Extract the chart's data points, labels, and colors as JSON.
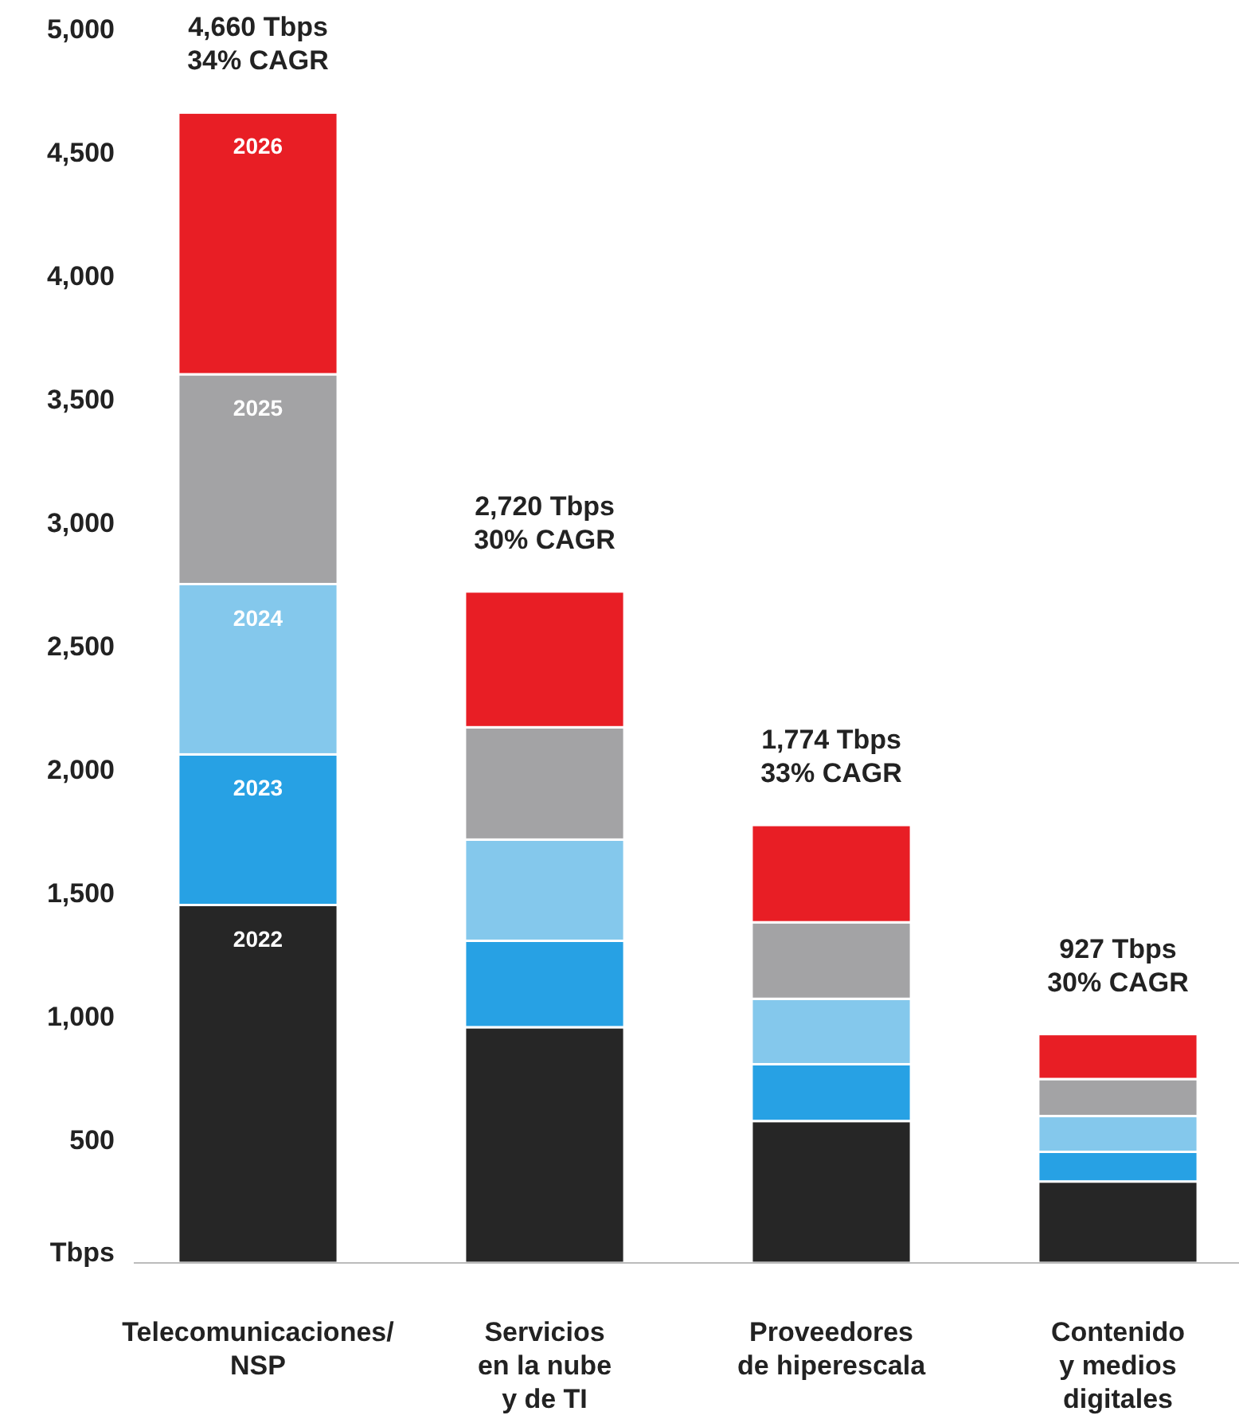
{
  "chart_data": {
    "type": "bar",
    "stacked": true,
    "categories": [
      "Telecomunicaciones/\nNSP",
      "Servicios\nen la nube\ny de TI",
      "Proveedores\nde hiperescala",
      "Contenido\ny medios\ndigitales"
    ],
    "series": [
      {
        "name": "2022",
        "color": "#262626",
        "values": [
          1450,
          955,
          575,
          330
        ]
      },
      {
        "name": "2023",
        "color": "#27a1e4",
        "values": [
          610,
          350,
          230,
          120
        ]
      },
      {
        "name": "2024",
        "color": "#84c8ec",
        "values": [
          690,
          410,
          265,
          145
        ]
      },
      {
        "name": "2025",
        "color": "#a3a3a5",
        "values": [
          850,
          455,
          310,
          150
        ]
      },
      {
        "name": "2026",
        "color": "#e81e25",
        "values": [
          1060,
          550,
          394,
          182
        ]
      }
    ],
    "totals": [
      "4,660 Tbps\n34% CAGR",
      "2,720 Tbps\n30% CAGR",
      "1,774 Tbps\n33% CAGR",
      "927 Tbps\n30% CAGR"
    ],
    "ylim": [
      0,
      5000
    ],
    "yticks": [
      {
        "value": 0,
        "label": "Tbps"
      },
      {
        "value": 500,
        "label": "500"
      },
      {
        "value": 1000,
        "label": "1,000"
      },
      {
        "value": 1500,
        "label": "1,500"
      },
      {
        "value": 2000,
        "label": "2,000"
      },
      {
        "value": 2500,
        "label": "2,500"
      },
      {
        "value": 3000,
        "label": "3,000"
      },
      {
        "value": 3500,
        "label": "3,500"
      },
      {
        "value": 4000,
        "label": "4,000"
      },
      {
        "value": 4500,
        "label": "4,500"
      },
      {
        "value": 5000,
        "label": "5,000"
      }
    ],
    "grid": false,
    "legend": false
  }
}
